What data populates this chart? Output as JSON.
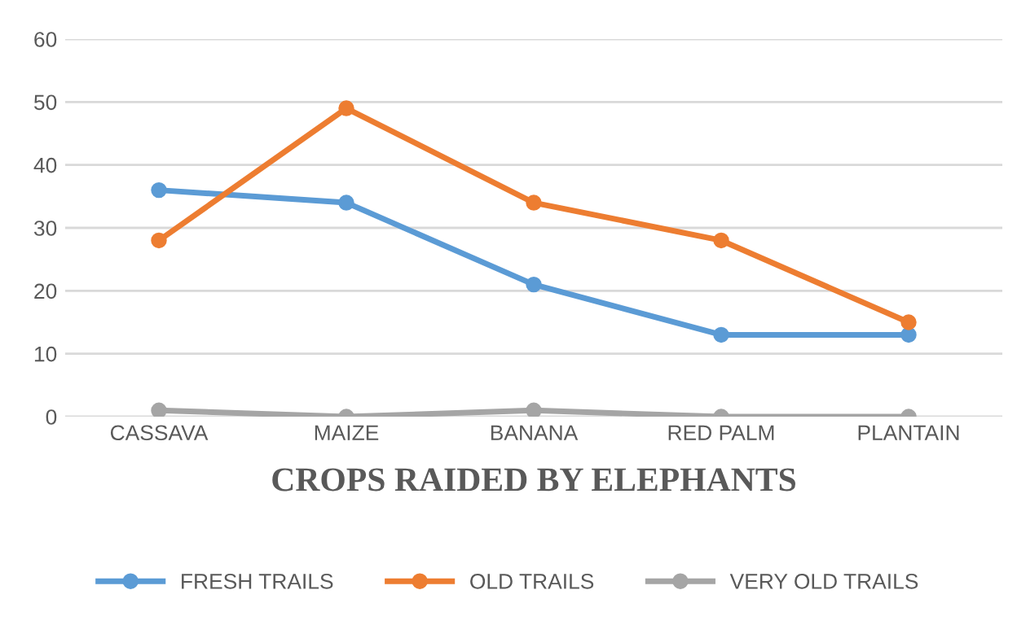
{
  "chart_data": {
    "type": "line",
    "xlabel": "CROPS RAIDED BY ELEPHANTS",
    "categories": [
      "CASSAVA",
      "MAIZE",
      "BANANA",
      "RED PALM",
      "PLANTAIN"
    ],
    "series": [
      {
        "name": "FRESH TRAILS",
        "color": "#5b9bd5",
        "values": [
          36,
          34,
          21,
          13,
          13
        ]
      },
      {
        "name": "OLD TRAILS",
        "color": "#ed7d31",
        "values": [
          28,
          49,
          34,
          28,
          15
        ]
      },
      {
        "name": "VERY OLD TRAILS",
        "color": "#a5a5a5",
        "values": [
          1,
          0,
          1,
          0,
          0
        ]
      }
    ],
    "ylim": [
      0,
      60
    ],
    "yticks": [
      0,
      10,
      20,
      30,
      40,
      50,
      60
    ],
    "grid": "y",
    "legend": "bottom",
    "marker": "circle",
    "line_style": "solid"
  }
}
